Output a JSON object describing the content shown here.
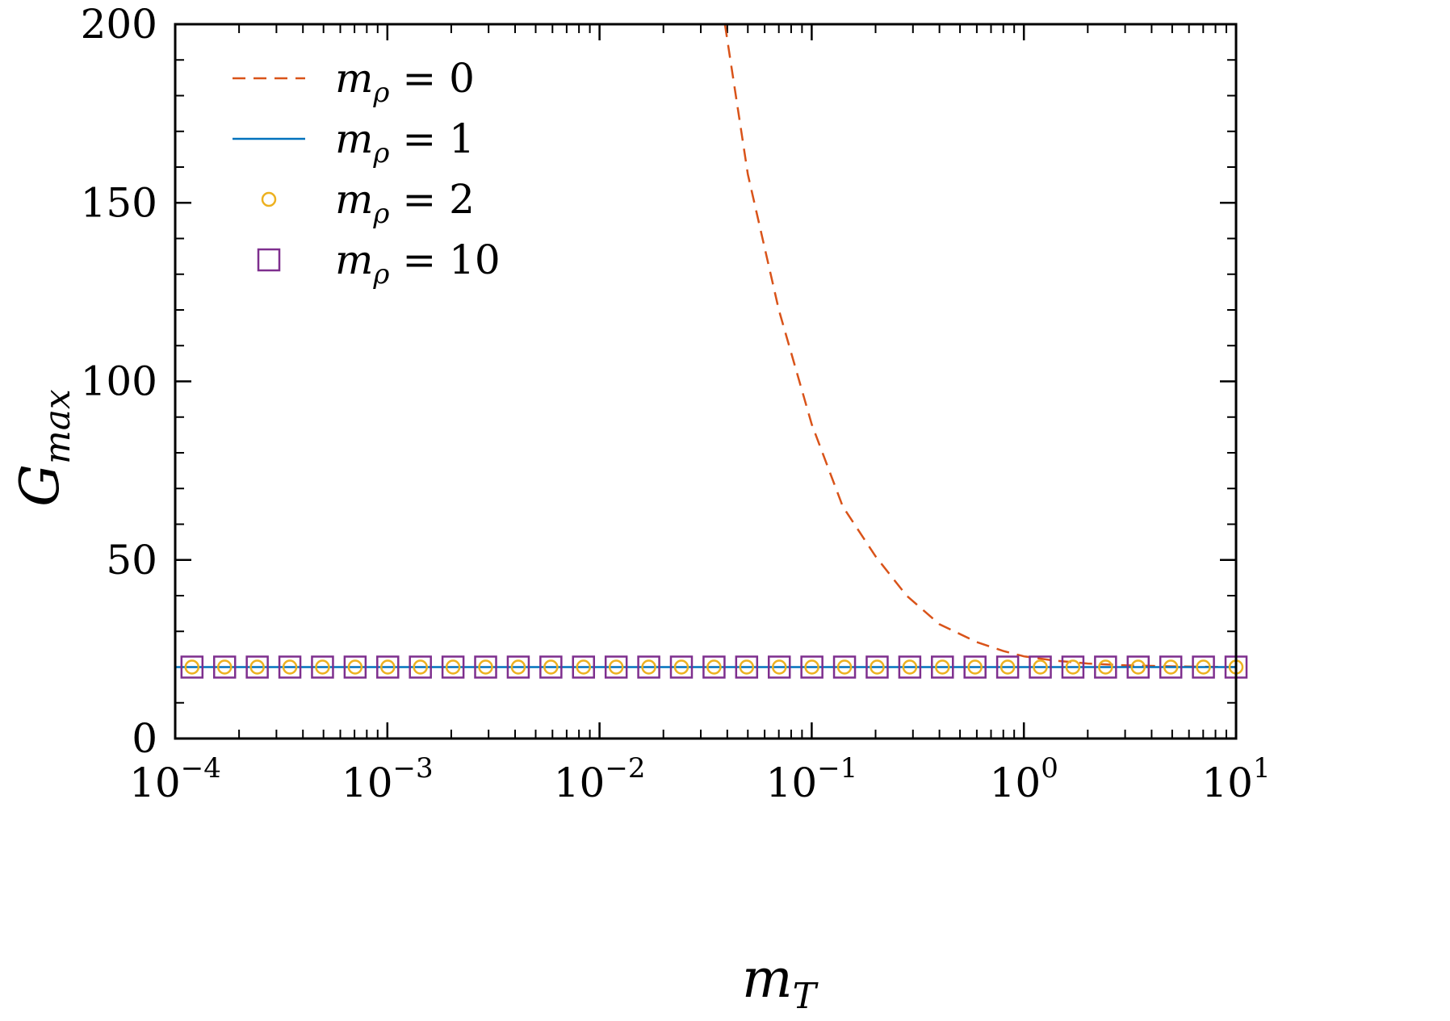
{
  "chart_data": {
    "type": "line",
    "title": "",
    "xlabel": {
      "base": "m",
      "sub": "T"
    },
    "ylabel": {
      "base": "G",
      "sub": "max"
    },
    "x_scale": "log",
    "xlim": [
      0.0001,
      10
    ],
    "ylim": [
      0,
      200
    ],
    "x_ticks": [
      {
        "base": "10",
        "exp": "−4"
      },
      {
        "base": "10",
        "exp": "−3"
      },
      {
        "base": "10",
        "exp": "−2"
      },
      {
        "base": "10",
        "exp": "−1"
      },
      {
        "base": "10",
        "exp": "0"
      },
      {
        "base": "10",
        "exp": "1"
      }
    ],
    "y_ticks": [
      "0",
      "50",
      "100",
      "150",
      "200"
    ],
    "grid": false,
    "legend_position": "top-left",
    "series": [
      {
        "label": {
          "base": "m",
          "sub": "ρ",
          "rest": " = 0"
        },
        "style": "dashed-line",
        "color": "#D95319",
        "x": [
          0.039,
          0.05,
          0.07,
          0.1,
          0.14,
          0.2,
          0.28,
          0.4,
          0.6,
          0.8,
          1.0,
          1.4,
          2.0,
          3.0,
          5.0,
          7.0,
          10.0
        ],
        "y": [
          200,
          158,
          120,
          88,
          65,
          51,
          40,
          32,
          27,
          24.5,
          23,
          21.8,
          21,
          20.5,
          20.2,
          20.1,
          20
        ]
      },
      {
        "label": {
          "base": "m",
          "sub": "ρ",
          "rest": " = 1"
        },
        "style": "solid-line",
        "color": "#0072BD",
        "x": [
          0.0001,
          10
        ],
        "y": [
          20,
          20
        ]
      },
      {
        "label": {
          "base": "m",
          "sub": "ρ",
          "rest": " = 2"
        },
        "style": "circle-markers",
        "color": "#EDB120",
        "marker_x_range": [
          0.00012,
          10
        ],
        "marker_count": 33,
        "y_constant": 20
      },
      {
        "label": {
          "base": "m",
          "sub": "ρ",
          "rest": " = 10"
        },
        "style": "square-markers",
        "color": "#7E2F8E",
        "marker_x_range": [
          0.00012,
          10
        ],
        "marker_count": 33,
        "y_constant": 20
      }
    ]
  }
}
